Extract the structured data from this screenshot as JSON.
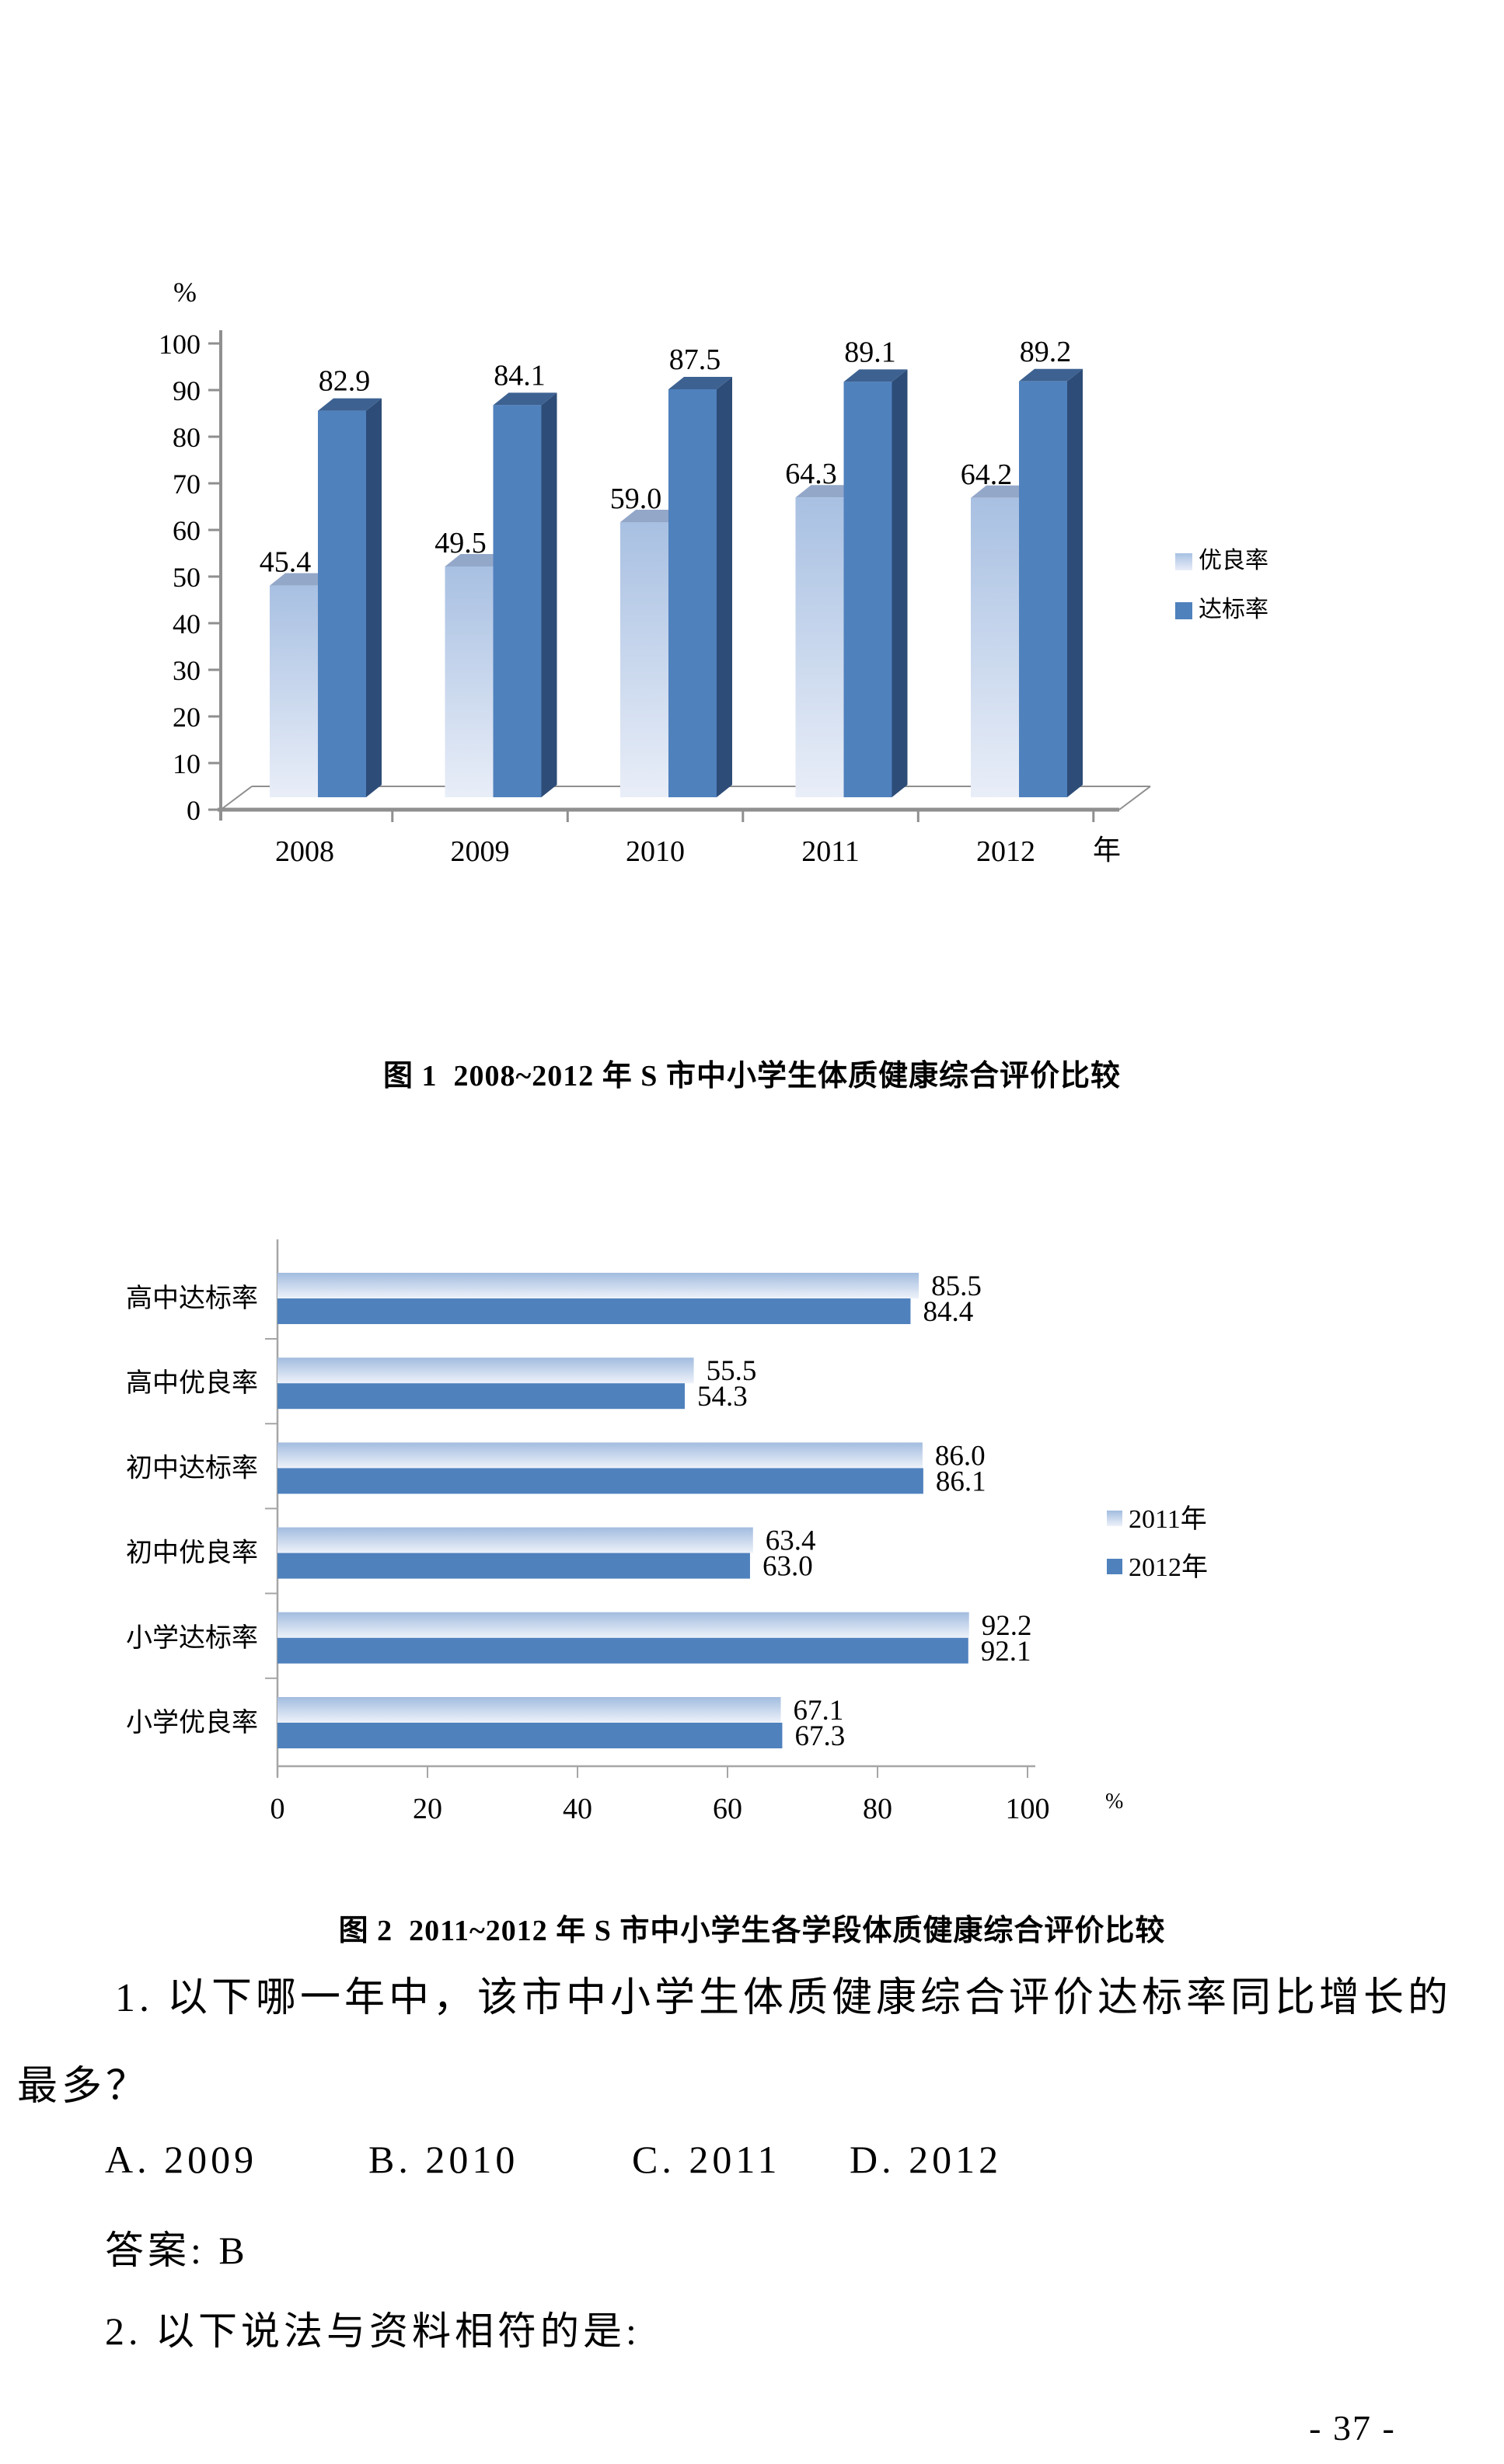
{
  "figure1": {
    "caption": "图 1  2008~2012 年 S 市中小学生体质健康综合评价比较",
    "y_axis_unit": "%",
    "x_axis_unit": "年"
  },
  "figure2": {
    "caption": "图 2  2011~2012 年 S 市中小学生各学段体质健康综合评价比较",
    "x_axis_unit": "%"
  },
  "chart_data": [
    {
      "type": "bar",
      "title": "",
      "categories": [
        "2008",
        "2009",
        "2010",
        "2011",
        "2012"
      ],
      "series": [
        {
          "name": "优良率",
          "values": [
            45.4,
            49.5,
            59.0,
            64.3,
            64.2
          ]
        },
        {
          "name": "达标率",
          "values": [
            82.9,
            84.1,
            87.5,
            89.1,
            89.2
          ]
        }
      ],
      "ylabel": "%",
      "xlabel": "年",
      "ylim": [
        0,
        100
      ],
      "ytick_step": 10,
      "yticks": [
        0,
        10,
        20,
        30,
        40,
        50,
        60,
        70,
        80,
        90,
        100
      ],
      "grid": false,
      "legend_position": "right",
      "style": "3d-column"
    },
    {
      "type": "bar",
      "orientation": "horizontal",
      "title": "",
      "categories": [
        "高中达标率",
        "高中优良率",
        "初中达标率",
        "初中优良率",
        "小学达标率",
        "小学优良率"
      ],
      "series": [
        {
          "name": "2011年",
          "values": [
            85.5,
            55.5,
            86.0,
            63.4,
            92.2,
            67.1
          ]
        },
        {
          "name": "2012年",
          "values": [
            84.4,
            54.3,
            86.1,
            63.0,
            92.1,
            67.3
          ]
        }
      ],
      "xlabel": "%",
      "xlim": [
        0,
        100
      ],
      "xtick_step": 20,
      "xticks": [
        0,
        20,
        40,
        60,
        80,
        100
      ],
      "grid": false,
      "legend_position": "right",
      "style": "flat-horizontal"
    }
  ],
  "questions": {
    "q1_line1": "1. 以下哪一年中，该市中小学生体质健康综合评价达标率同比增长的",
    "q1_line2": "最多？",
    "options": [
      "A. 2009",
      "B. 2010",
      "C. 2011",
      "D. 2012"
    ],
    "answer": "答案: B",
    "q2": "2. 以下说法与资料相符的是:"
  },
  "footer": {
    "page_number": "- 37 -"
  },
  "colors": {
    "light_face_top": "#a8c0e2",
    "light_face_bottom": "#e9eef8",
    "light_top3d": "#93a7c9",
    "light_side3d": "#8ea6c9",
    "dark_face": "#4f81bd",
    "dark_top3d": "#3d6292",
    "dark_side3d": "#2d4c77",
    "chart2_light_top": "#a2bcdf",
    "chart2_light_bottom": "#eef2fa",
    "axis_gray": "#8f8f8f",
    "axis_gray_light": "#a6a6a6",
    "text": "#000000"
  }
}
